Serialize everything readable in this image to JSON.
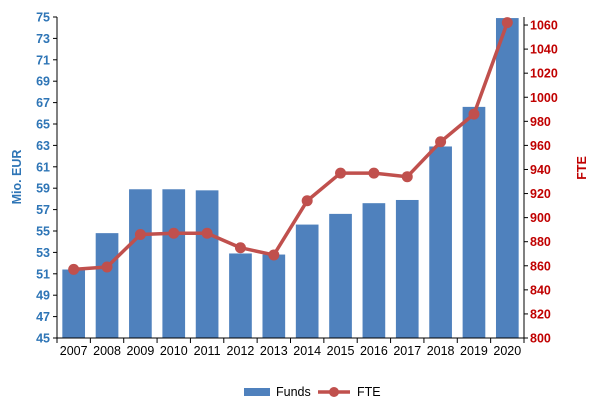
{
  "chart_data": {
    "type": "bar+line",
    "categories": [
      "2007",
      "2008",
      "2009",
      "2010",
      "2011",
      "2012",
      "2013",
      "2014",
      "2015",
      "2016",
      "2017",
      "2018",
      "2019",
      "2020"
    ],
    "series": [
      {
        "name": "Funds",
        "type": "bar",
        "axis": "left",
        "color": "#4F81BD",
        "values": [
          51.4,
          54.8,
          58.9,
          58.9,
          58.8,
          52.9,
          52.8,
          55.6,
          56.6,
          57.6,
          57.9,
          62.9,
          66.6,
          74.9
        ]
      },
      {
        "name": "FTE",
        "type": "line",
        "axis": "right",
        "color": "#C0504D",
        "values": [
          857,
          859,
          886,
          887,
          887,
          875,
          869,
          914,
          937,
          937,
          934,
          963,
          986,
          1062
        ]
      }
    ],
    "ylabel": "Mio. EUR",
    "y2label": "FTE",
    "ylim": [
      45,
      75
    ],
    "y2lim": [
      800,
      1066.67
    ],
    "yticks": [
      "45",
      "47",
      "49",
      "51",
      "53",
      "55",
      "57",
      "59",
      "61",
      "63",
      "65",
      "67",
      "69",
      "71",
      "73",
      "75"
    ],
    "y2ticks": [
      "800",
      "820",
      "840",
      "860",
      "880",
      "900",
      "920",
      "940",
      "960",
      "980",
      "1000",
      "1020",
      "1040",
      "1060"
    ],
    "legend_position": "bottom",
    "grid": false,
    "left_axis_color": "#2E75B6",
    "right_axis_color": "#C00000"
  }
}
